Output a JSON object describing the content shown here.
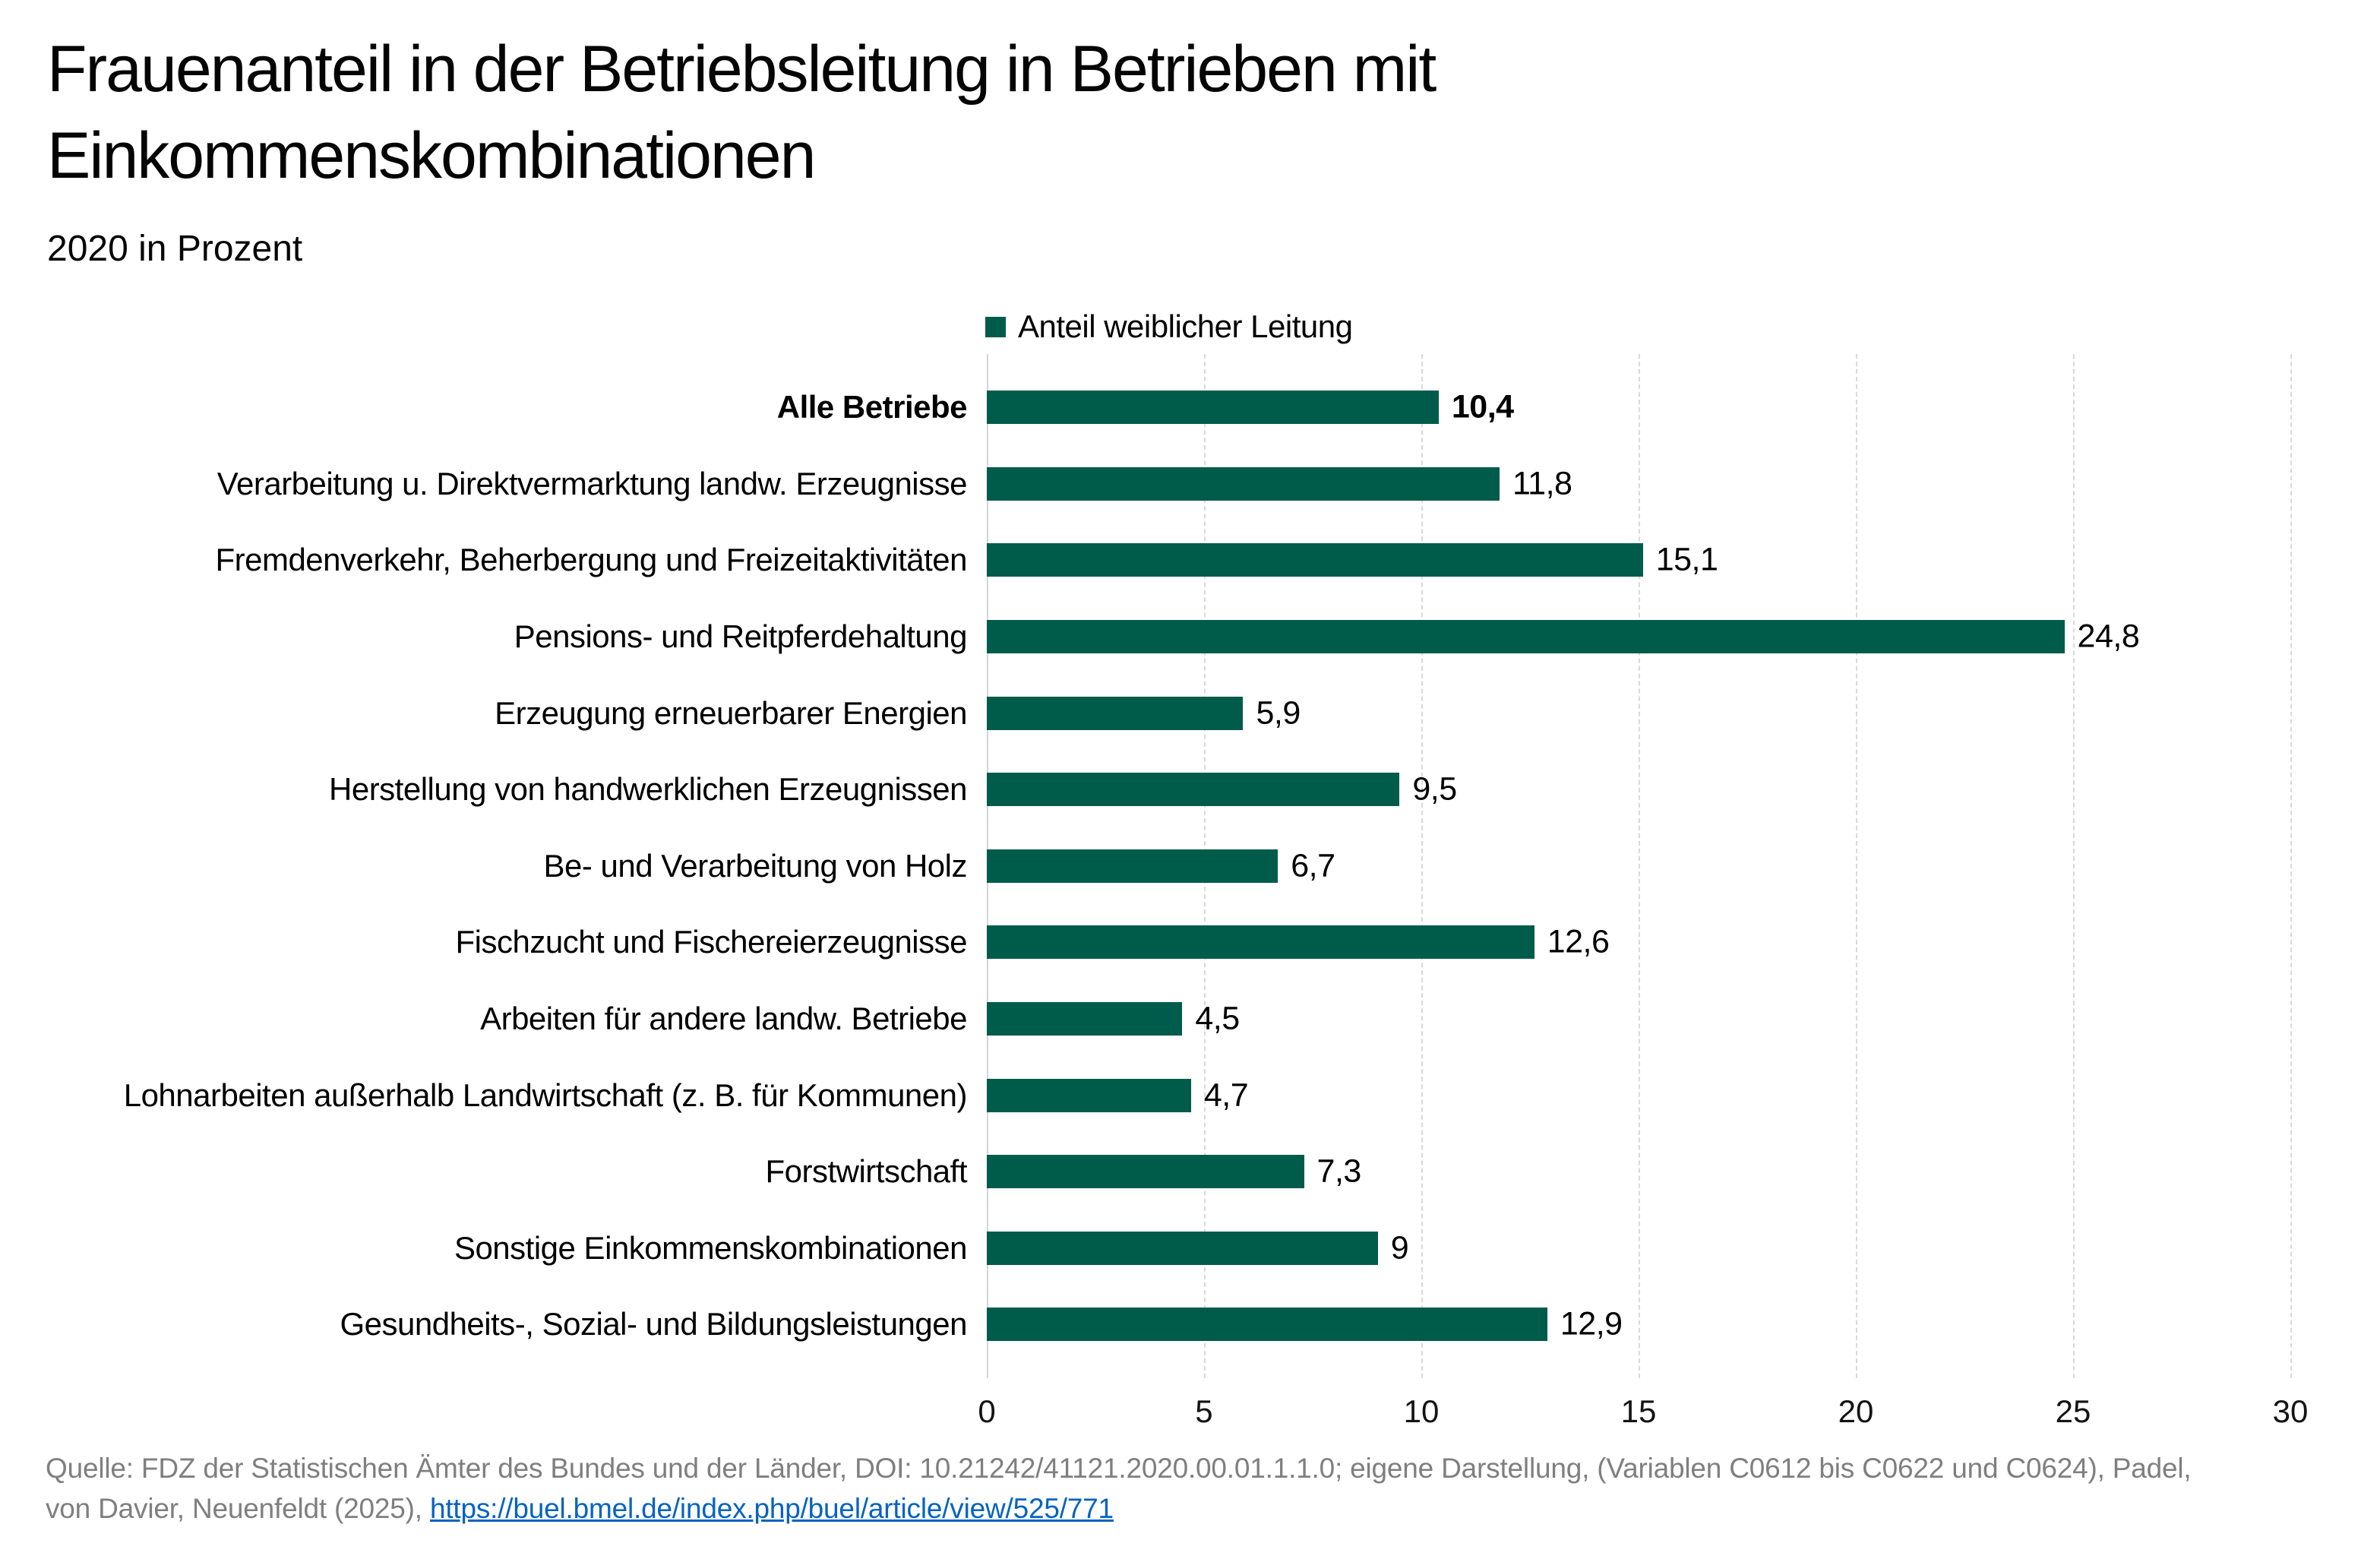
{
  "title": {
    "line1": "Frauenanteil in der Betriebsleitung in Betrieben mit",
    "line2": "Einkommenskombinationen"
  },
  "subtitle": "2020 in Prozent",
  "legend": {
    "label": "Anteil weiblicher Leitung"
  },
  "chart_data": {
    "type": "bar",
    "orientation": "horizontal",
    "title": "Frauenanteil in der Betriebsleitung in Betrieben mit Einkommenskombinationen",
    "subtitle": "2020 in Prozent",
    "unit": "Prozent",
    "legend_entries": [
      "Anteil weiblicher Leitung"
    ],
    "legend_position": "top",
    "grid": "vertical-dashed",
    "xlim": [
      0,
      30
    ],
    "x_ticks": [
      0,
      5,
      10,
      15,
      20,
      25,
      30
    ],
    "emphasis_index": 0,
    "categories": [
      "Alle Betriebe",
      "Verarbeitung u. Direktvermarktung landw. Erzeugnisse",
      "Fremdenverkehr, Beherbergung und Freizeitaktivitäten",
      "Pensions- und Reitpferdehaltung",
      "Erzeugung erneuerbarer Energien",
      "Herstellung von handwerklichen Erzeugnissen",
      "Be- und Verarbeitung von Holz",
      "Fischzucht und Fischereierzeugnisse",
      "Arbeiten für andere landw. Betriebe",
      "Lohnarbeiten außerhalb Landwirtschaft (z. B. für Kommunen)",
      "Forstwirtschaft",
      "Sonstige Einkommenskombinationen",
      "Gesundheits-, Sozial- und Bildungsleistungen"
    ],
    "values": [
      10.4,
      11.8,
      15.1,
      24.8,
      5.9,
      9.5,
      6.7,
      12.6,
      4.5,
      4.7,
      7.3,
      9,
      12.9
    ],
    "value_labels": [
      "10,4",
      "11,8",
      "15,1",
      "24,8",
      "5,9",
      "9,5",
      "6,7",
      "12,6",
      "4,5",
      "4,7",
      "7,3",
      "9",
      "12,9"
    ]
  },
  "colors": {
    "bar": "#005C4A",
    "grid_dashed": "#D9D9D9",
    "axis": "#D4D4D4",
    "footer_text": "#7F7F7F",
    "link": "#0563C1"
  },
  "footer": {
    "line1": "Quelle: FDZ der Statistischen Ämter des Bundes und der Länder, DOI: 10.21242/41121.2020.00.01.1.1.0;  eigene Darstellung, (Variablen C0612 bis C0622 und C0624), Padel,",
    "line2_prefix": "von Davier, Neuenfeldt (2025), ",
    "link_text": "https://buel.bmel.de/index.php/buel/article/view/525/771",
    "link_href": "https://buel.bmel.de/index.php/buel/article/view/525/771"
  }
}
